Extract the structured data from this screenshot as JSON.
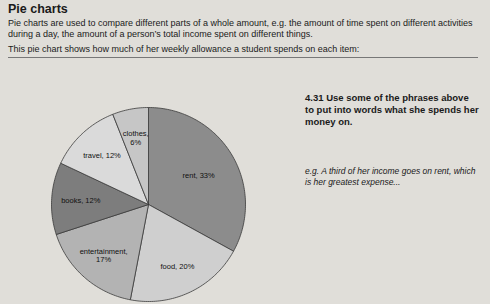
{
  "header": {
    "title": "Pie charts"
  },
  "intro": [
    "Pie charts are used to compare different parts of a whole amount, e.g. the amount of time spent on different activities during a day, the amount of a person’s total income spent on different things.",
    "This pie chart shows how much of her weekly allowance a student spends on each item:"
  ],
  "exercise": {
    "text": "4.31 Use some of the phrases above to put into words what she spends her money on.",
    "example": "e.g. A third of her income goes on rent, which is her greatest expense..."
  },
  "chart_data": {
    "type": "pie",
    "categories": [
      "rent",
      "food",
      "entertainment",
      "books",
      "travel",
      "clothes"
    ],
    "values": [
      33,
      20,
      17,
      12,
      12,
      6
    ],
    "value_labels": [
      "rent, 33%",
      "food, 20%",
      "entertainment, 17%",
      "books, 12%",
      "travel, 12%",
      "clothes, 6%"
    ],
    "data_labels": true,
    "colors": [
      "#8c8c8c",
      "#cfcfcf",
      "#b3b3b3",
      "#7d7d7d",
      "#dadada",
      "#c6c6c6"
    ]
  }
}
